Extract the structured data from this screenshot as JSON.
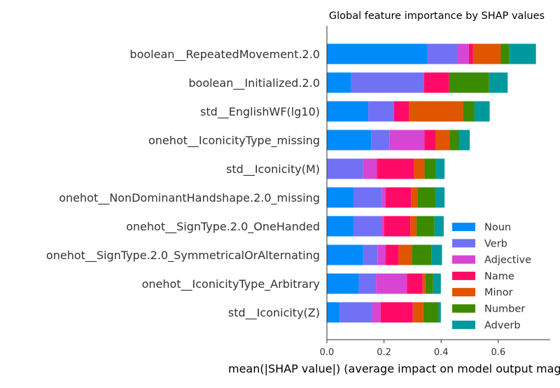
{
  "chart_data": {
    "type": "bar",
    "orientation": "horizontal",
    "stacked": true,
    "title": "Global feature importance by SHAP values",
    "xlabel": "mean(|SHAP value|) (average impact on model output magnitude)",
    "ylabel": "",
    "xlim": [
      0,
      0.78
    ],
    "xticks": [
      0.0,
      0.2,
      0.4,
      0.6
    ],
    "xtick_labels": [
      "0.0",
      "0.2",
      "0.4",
      "0.6"
    ],
    "grid": false,
    "legend_position": "lower-right",
    "categories": [
      "boolean__RepeatedMovement.2.0",
      "boolean__Initialized.2.0",
      "std__EnglishWF(lg10)",
      "onehot__IconicityType_missing",
      "std__Iconicity(M)",
      "onehot__NonDominantHandshape.2.0_missing",
      "onehot__SignType.2.0_OneHanded",
      "onehot__SignType.2.0_SymmetricalOrAlternating",
      "onehot__IconicityType_Arbitrary",
      "std__Iconicity(Z)"
    ],
    "series": [
      {
        "name": "Noun",
        "color": "#008bfb",
        "values": [
          0.352,
          0.085,
          0.145,
          0.155,
          0.0,
          0.093,
          0.093,
          0.127,
          0.112,
          0.045
        ]
      },
      {
        "name": "Verb",
        "color": "#7171f5",
        "values": [
          0.105,
          0.255,
          0.09,
          0.065,
          0.127,
          0.1,
          0.097,
          0.05,
          0.06,
          0.113
        ]
      },
      {
        "name": "Adjective",
        "color": "#d645d4",
        "values": [
          0.04,
          0.0,
          0.0,
          0.122,
          0.048,
          0.012,
          0.01,
          0.028,
          0.108,
          0.03
        ]
      },
      {
        "name": "Name",
        "color": "#ff0b67",
        "values": [
          0.015,
          0.088,
          0.052,
          0.04,
          0.13,
          0.09,
          0.092,
          0.046,
          0.055,
          0.113
        ]
      },
      {
        "name": "Minor",
        "color": "#e05500",
        "values": [
          0.097,
          0.0,
          0.19,
          0.048,
          0.037,
          0.022,
          0.022,
          0.047,
          0.01,
          0.037
        ]
      },
      {
        "name": "Number",
        "color": "#3b8a00",
        "values": [
          0.03,
          0.14,
          0.04,
          0.032,
          0.04,
          0.063,
          0.063,
          0.068,
          0.027,
          0.053
        ]
      },
      {
        "name": "Adverb",
        "color": "#00999e",
        "values": [
          0.093,
          0.065,
          0.053,
          0.038,
          0.03,
          0.032,
          0.032,
          0.037,
          0.027,
          0.008
        ]
      }
    ]
  }
}
